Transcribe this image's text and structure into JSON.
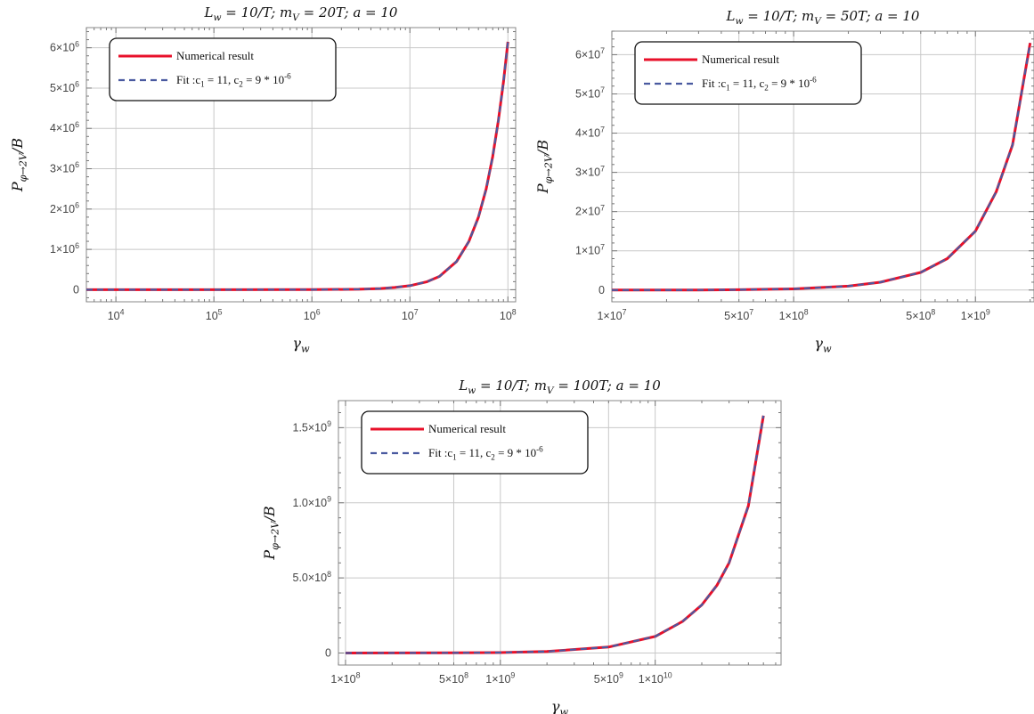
{
  "colors": {
    "numerical": "#e8102a",
    "fit": "#4a5aa0",
    "grid": "#c8c8c8",
    "frame": "#8a8a8a"
  },
  "chart_data": [
    {
      "type": "line",
      "title": "L_w = 10/T; m_V = 20T; a = 10",
      "xlabel": "γ_w",
      "ylabel": "P_{φ→2V}/B",
      "x_scale": "log",
      "xlim": [
        5000,
        120000000
      ],
      "ylim": [
        -300000,
        6500000
      ],
      "x_ticks": [
        {
          "value": 10000,
          "label": "10^4"
        },
        {
          "value": 100000,
          "label": "10^5"
        },
        {
          "value": 1000000,
          "label": "10^6"
        },
        {
          "value": 10000000,
          "label": "10^7"
        },
        {
          "value": 100000000,
          "label": "10^8"
        }
      ],
      "y_ticks": [
        {
          "value": 0,
          "label": "0"
        },
        {
          "value": 1000000,
          "label": "1×10^6"
        },
        {
          "value": 2000000,
          "label": "2×10^6"
        },
        {
          "value": 3000000,
          "label": "3×10^6"
        },
        {
          "value": 4000000,
          "label": "4×10^6"
        },
        {
          "value": 5000000,
          "label": "5×10^6"
        },
        {
          "value": 6000000,
          "label": "6×10^6"
        }
      ],
      "grid": true,
      "legend_position": "top-left",
      "series": [
        {
          "name": "Numerical result",
          "style": "solid",
          "x": [
            5000,
            1000000,
            3000000,
            5000000,
            7000000,
            10000000,
            15000000,
            20000000,
            30000000,
            40000000,
            50000000,
            60000000,
            70000000,
            80000000,
            90000000,
            100000000
          ],
          "y": [
            0,
            3000,
            12000,
            30000,
            55000,
            100000,
            200000,
            330000,
            700000,
            1200000,
            1800000,
            2500000,
            3300000,
            4200000,
            5150000,
            6150000
          ]
        },
        {
          "name": "Fit :c_1 = 11, c_2 = 9 * 10^-6",
          "style": "dashed",
          "x": [
            5000,
            1000000,
            3000000,
            5000000,
            7000000,
            10000000,
            15000000,
            20000000,
            30000000,
            40000000,
            50000000,
            60000000,
            70000000,
            80000000,
            90000000,
            100000000
          ],
          "y": [
            0,
            3000,
            12000,
            30000,
            55000,
            100000,
            200000,
            330000,
            700000,
            1200000,
            1800000,
            2500000,
            3300000,
            4200000,
            5150000,
            6150000
          ]
        }
      ]
    },
    {
      "type": "line",
      "title": "L_w = 10/T; m_V = 50T; a = 10",
      "xlabel": "γ_w",
      "ylabel": "P_{φ→2V}/B",
      "x_scale": "log",
      "xlim": [
        10000000,
        2100000000
      ],
      "ylim": [
        -3000000,
        66000000
      ],
      "x_ticks": [
        {
          "value": 10000000,
          "label": "1×10^7"
        },
        {
          "value": 50000000,
          "label": "5×10^7"
        },
        {
          "value": 100000000,
          "label": "1×10^8"
        },
        {
          "value": 500000000,
          "label": "5×10^8"
        },
        {
          "value": 1000000000,
          "label": "1×10^9"
        }
      ],
      "y_ticks": [
        {
          "value": 0,
          "label": "0"
        },
        {
          "value": 10000000,
          "label": "1×10^7"
        },
        {
          "value": 20000000,
          "label": "2×10^7"
        },
        {
          "value": 30000000,
          "label": "3×10^7"
        },
        {
          "value": 40000000,
          "label": "4×10^7"
        },
        {
          "value": 50000000,
          "label": "5×10^7"
        },
        {
          "value": 60000000,
          "label": "6×10^7"
        }
      ],
      "grid": true,
      "legend_position": "top-left",
      "series": [
        {
          "name": "Numerical result",
          "style": "solid",
          "x": [
            10000000,
            30000000,
            50000000,
            100000000,
            200000000,
            300000000,
            500000000,
            700000000,
            1000000000,
            1300000000,
            1600000000,
            2000000000
          ],
          "y": [
            0,
            20000,
            80000,
            300000,
            1000000,
            2000000,
            4500000,
            8000000,
            15000000,
            25000000,
            37000000,
            63000000
          ]
        },
        {
          "name": "Fit :c_1 = 11, c_2 = 9 * 10^-6",
          "style": "dashed",
          "x": [
            10000000,
            30000000,
            50000000,
            100000000,
            200000000,
            300000000,
            500000000,
            700000000,
            1000000000,
            1300000000,
            1600000000,
            2000000000
          ],
          "y": [
            0,
            20000,
            80000,
            300000,
            1000000,
            2000000,
            4500000,
            8000000,
            15000000,
            25000000,
            37000000,
            63000000
          ]
        }
      ]
    },
    {
      "type": "line",
      "title": "L_w = 10/T; m_V = 100T; a = 10",
      "xlabel": "γ_w",
      "ylabel": "P_{φ→2V}/B",
      "x_scale": "log",
      "xlim": [
        90000000,
        65000000000
      ],
      "ylim": [
        -80000000,
        1680000000
      ],
      "x_ticks": [
        {
          "value": 100000000,
          "label": "1×10^8"
        },
        {
          "value": 500000000,
          "label": "5×10^8"
        },
        {
          "value": 1000000000,
          "label": "1×10^9"
        },
        {
          "value": 5000000000,
          "label": "5×10^9"
        },
        {
          "value": 10000000000,
          "label": "1×10^10"
        }
      ],
      "y_ticks": [
        {
          "value": 0,
          "label": "0"
        },
        {
          "value": 500000000,
          "label": "5.0×10^8"
        },
        {
          "value": 1000000000,
          "label": "1.0×10^9"
        },
        {
          "value": 1500000000,
          "label": "1.5×10^9"
        }
      ],
      "grid": true,
      "legend_position": "top-left",
      "series": [
        {
          "name": "Numerical result",
          "style": "solid",
          "x": [
            100000000,
            500000000,
            1000000000,
            2000000000,
            5000000000,
            10000000000,
            15000000000,
            20000000000,
            25000000000,
            30000000000,
            40000000000,
            50000000000
          ],
          "y": [
            0,
            1000000,
            3000000,
            10000000,
            40000000,
            110000000,
            210000000,
            320000000,
            450000000,
            600000000,
            980000000,
            1580000000
          ]
        },
        {
          "name": "Fit :c_1 = 11, c_2 = 9 * 10^-6",
          "style": "dashed",
          "x": [
            100000000,
            500000000,
            1000000000,
            2000000000,
            5000000000,
            10000000000,
            15000000000,
            20000000000,
            25000000000,
            30000000000,
            40000000000,
            50000000000
          ],
          "y": [
            0,
            1000000,
            3000000,
            10000000,
            40000000,
            110000000,
            210000000,
            320000000,
            450000000,
            600000000,
            980000000,
            1580000000
          ]
        }
      ]
    }
  ]
}
